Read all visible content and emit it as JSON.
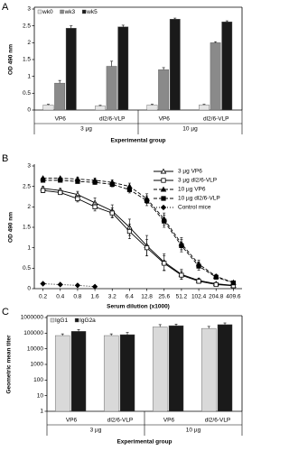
{
  "chart_data": [
    {
      "type": "bar",
      "panel": "A",
      "ylabel": "OD 490 nm",
      "xlabel": "Experimental group",
      "categories": [
        "VP6",
        "dl2/6-VLP",
        "VP6",
        "dl2/6-VLP"
      ],
      "groups": [
        "3 µg",
        "10 µg"
      ],
      "series": [
        {
          "name": "wk0",
          "color": "#e6e6e6",
          "values": [
            0.15,
            0.12,
            0.15,
            0.15
          ],
          "errors": [
            0.02,
            0.02,
            0.02,
            0.02
          ]
        },
        {
          "name": "wk3",
          "color": "#8a8a8a",
          "values": [
            0.8,
            1.3,
            1.2,
            2.0
          ],
          "errors": [
            0.08,
            0.15,
            0.06,
            0.03
          ]
        },
        {
          "name": "wk5",
          "color": "#1a1a1a",
          "values": [
            2.43,
            2.47,
            2.7,
            2.62
          ],
          "errors": [
            0.07,
            0.05,
            0.03,
            0.03
          ]
        }
      ],
      "ylim": [
        0,
        3
      ],
      "yticks": [
        0,
        0.5,
        1,
        1.5,
        2,
        2.5,
        3
      ],
      "log": false,
      "legend": "upper left"
    },
    {
      "type": "line",
      "panel": "B",
      "ylabel": "OD 490 nm",
      "xlabel": "Serum dilution (x1000)",
      "categories": [
        "0.2",
        "0.4",
        "0.8",
        "1.6",
        "3.2",
        "6.4",
        "12.8",
        "25.6",
        "51.2",
        "102.4",
        "204.8",
        "409.6"
      ],
      "series": [
        {
          "name": "3 µg VP6",
          "color": "#000000",
          "dash": "solid",
          "marker": "triangle-open",
          "values": [
            2.45,
            2.4,
            2.3,
            2.1,
            1.9,
            1.5,
            1.05,
            0.65,
            0.35,
            0.2,
            0.12,
            0.08
          ],
          "errors": [
            0.05,
            0.05,
            0.08,
            0.12,
            0.15,
            0.2,
            0.25,
            0.2,
            0.12,
            0.06,
            0.03,
            0.02
          ]
        },
        {
          "name": "3 µg dl2/6-VLP",
          "color": "#000000",
          "dash": "solid",
          "marker": "square-open",
          "values": [
            2.4,
            2.35,
            2.2,
            2.0,
            1.85,
            1.4,
            1.0,
            0.62,
            0.33,
            0.18,
            0.1,
            0.07
          ],
          "errors": [
            0.05,
            0.05,
            0.08,
            0.1,
            0.12,
            0.18,
            0.2,
            0.18,
            0.1,
            0.05,
            0.03,
            0.02
          ]
        },
        {
          "name": "10 µg VP6",
          "color": "#000000",
          "dash": "dashed",
          "marker": "triangle-filled",
          "values": [
            2.7,
            2.7,
            2.68,
            2.65,
            2.6,
            2.5,
            2.2,
            1.7,
            1.1,
            0.6,
            0.3,
            0.15
          ],
          "errors": [
            0.03,
            0.03,
            0.04,
            0.05,
            0.06,
            0.08,
            0.12,
            0.15,
            0.15,
            0.1,
            0.05,
            0.03
          ]
        },
        {
          "name": "10 µg dl2/6-VLP",
          "color": "#000000",
          "dash": "dashed",
          "marker": "square-filled",
          "values": [
            2.65,
            2.65,
            2.62,
            2.6,
            2.55,
            2.42,
            2.15,
            1.65,
            1.05,
            0.55,
            0.28,
            0.14
          ],
          "errors": [
            0.03,
            0.03,
            0.04,
            0.05,
            0.06,
            0.08,
            0.12,
            0.15,
            0.15,
            0.1,
            0.05,
            0.03
          ]
        },
        {
          "name": "Control mice",
          "color": "#000000",
          "dash": "dotted",
          "marker": "diamond-filled",
          "values": [
            0.12,
            0.1,
            0.08,
            0.05,
            null,
            null,
            null,
            null,
            null,
            null,
            null,
            null
          ],
          "errors": [
            0.01,
            0.01,
            0.01,
            0.01,
            null,
            null,
            null,
            null,
            null,
            null,
            null,
            null
          ]
        }
      ],
      "ylim": [
        0,
        3
      ],
      "yticks": [
        0,
        0.5,
        1,
        1.5,
        2,
        2.5,
        3
      ],
      "log": false,
      "legend": "upper right"
    },
    {
      "type": "bar",
      "panel": "C",
      "ylabel": "Geometric mean titer",
      "xlabel": "Experimental group",
      "categories": [
        "VP6",
        "dl2/6-VLP",
        "VP6",
        "dl2/6-VLP"
      ],
      "groups": [
        "3 µg",
        "10 µg"
      ],
      "series": [
        {
          "name": "IgG1",
          "color": "#d9d9d9",
          "values": [
            70000,
            70000,
            250000,
            200000
          ],
          "errors": [
            20000,
            20000,
            100000,
            70000
          ]
        },
        {
          "name": "IgG2a",
          "color": "#1a1a1a",
          "values": [
            130000,
            80000,
            300000,
            350000
          ],
          "errors": [
            40000,
            30000,
            80000,
            100000
          ]
        }
      ],
      "ylim": [
        1,
        1000000
      ],
      "yticks": [
        1,
        10,
        100,
        1000,
        10000,
        100000,
        1000000
      ],
      "log": true,
      "legend": "upper left"
    }
  ]
}
